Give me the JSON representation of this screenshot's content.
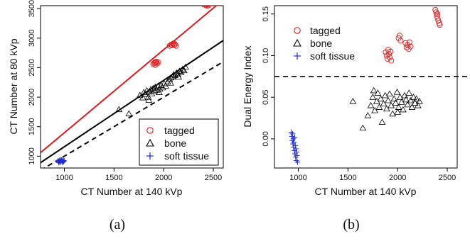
{
  "chart_data": [
    {
      "type": "scatter",
      "panel_label": "(a)",
      "xlabel": "CT Number at 140 kVp",
      "ylabel": "CT Number at 80 kVp",
      "xlim": [
        760,
        2600
      ],
      "ylim": [
        800,
        3550
      ],
      "xticks": [
        1000,
        1500,
        2000,
        2500
      ],
      "yticks": [
        1000,
        1500,
        2000,
        2500,
        3000,
        3500
      ],
      "legend_position": "bottom-right",
      "colors": {
        "tagged": "#e31a1c",
        "bone": "#000000",
        "soft_tissue": "#1f2bd6"
      },
      "series": [
        {
          "name": "tagged",
          "marker": "circle",
          "points": [
            [
              1895,
              2560
            ],
            [
              1905,
              2575
            ],
            [
              1912,
              2590
            ],
            [
              1920,
              2585
            ],
            [
              1928,
              2600
            ],
            [
              1935,
              2570
            ],
            [
              1945,
              2590
            ],
            [
              1915,
              2545
            ],
            [
              2060,
              2870
            ],
            [
              2075,
              2890
            ],
            [
              2085,
              2880
            ],
            [
              2095,
              2900
            ],
            [
              2105,
              2885
            ],
            [
              2115,
              2895
            ],
            [
              2125,
              2870
            ],
            [
              2100,
              2910
            ],
            [
              2405,
              3570
            ],
            [
              2415,
              3590
            ],
            [
              2420,
              3560
            ],
            [
              2430,
              3580
            ],
            [
              2440,
              3570
            ],
            [
              2450,
              3555
            ],
            [
              2425,
              3600
            ],
            [
              2435,
              3545
            ]
          ]
        },
        {
          "name": "bone",
          "marker": "triangle",
          "points": [
            [
              1550,
              1790
            ],
            [
              1650,
              1720
            ],
            [
              1760,
              2030
            ],
            [
              1790,
              1990
            ],
            [
              1800,
              2080
            ],
            [
              1815,
              2050
            ],
            [
              1830,
              2110
            ],
            [
              1845,
              2000
            ],
            [
              1855,
              2090
            ],
            [
              1870,
              2130
            ],
            [
              1880,
              2060
            ],
            [
              1895,
              2150
            ],
            [
              1905,
              2100
            ],
            [
              1915,
              2170
            ],
            [
              1930,
              2120
            ],
            [
              1945,
              2190
            ],
            [
              1960,
              2140
            ],
            [
              1975,
              2200
            ],
            [
              1990,
              2160
            ],
            [
              2005,
              2230
            ],
            [
              2020,
              2190
            ],
            [
              2040,
              2260
            ],
            [
              2060,
              2300
            ],
            [
              2075,
              2330
            ],
            [
              2090,
              2350
            ],
            [
              2100,
              2380
            ],
            [
              2115,
              2370
            ],
            [
              2130,
              2410
            ],
            [
              2145,
              2390
            ],
            [
              2160,
              2440
            ],
            [
              2175,
              2420
            ],
            [
              2190,
              2470
            ],
            [
              2205,
              2450
            ],
            [
              2220,
              2510
            ],
            [
              1850,
              1950
            ],
            [
              1955,
              2080
            ],
            [
              2070,
              2240
            ],
            [
              2150,
              2340
            ]
          ]
        },
        {
          "name": "soft tissue",
          "marker": "plus",
          "points": [
            [
              935,
              920
            ],
            [
              942,
              905
            ],
            [
              948,
              930
            ],
            [
              952,
              915
            ],
            [
              958,
              900
            ],
            [
              962,
              925
            ],
            [
              968,
              910
            ],
            [
              972,
              935
            ],
            [
              978,
              918
            ],
            [
              983,
              902
            ],
            [
              988,
              928
            ],
            [
              993,
              912
            ],
            [
              998,
              922
            ],
            [
              945,
              890
            ],
            [
              965,
              940
            ],
            [
              980,
              895
            ]
          ]
        }
      ],
      "lines": [
        {
          "name": "tagged fit",
          "style": "solid",
          "color": "#e31a1c",
          "x": [
            760,
            2600
          ],
          "y": [
            1060,
            3650
          ]
        },
        {
          "name": "bone fit",
          "style": "solid",
          "color": "#000000",
          "x": [
            760,
            2600
          ],
          "y": [
            890,
            2960
          ]
        },
        {
          "name": "identity",
          "style": "dashed",
          "color": "#000000",
          "x": [
            760,
            2600
          ],
          "y": [
            760,
            2600
          ]
        }
      ]
    },
    {
      "type": "scatter",
      "panel_label": "(b)",
      "xlabel": "CT Number at 140 kVp",
      "ylabel": "Dual Energy Index",
      "xlim": [
        760,
        2600
      ],
      "ylim": [
        -0.035,
        0.16
      ],
      "xticks": [
        1000,
        1500,
        2000,
        2500
      ],
      "yticks": [
        "0.00",
        "0.05",
        "0.10",
        "0.15"
      ],
      "ytick_values": [
        0,
        0.05,
        0.1,
        0.15
      ],
      "legend_position": "top-left",
      "threshold": 0.075,
      "colors": {
        "tagged": "#e31a1c",
        "bone": "#000000",
        "soft_tissue": "#1f2bd6"
      },
      "series": [
        {
          "name": "tagged",
          "marker": "circle",
          "points": [
            [
              1880,
              0.104
            ],
            [
              1890,
              0.1
            ],
            [
              1898,
              0.096
            ],
            [
              1905,
              0.107
            ],
            [
              1912,
              0.102
            ],
            [
              1920,
              0.098
            ],
            [
              1928,
              0.105
            ],
            [
              1935,
              0.094
            ],
            [
              2010,
              0.121
            ],
            [
              2020,
              0.124
            ],
            [
              2030,
              0.118
            ],
            [
              2080,
              0.115
            ],
            [
              2090,
              0.11
            ],
            [
              2100,
              0.113
            ],
            [
              2110,
              0.108
            ],
            [
              2120,
              0.116
            ],
            [
              2130,
              0.111
            ],
            [
              2380,
              0.155
            ],
            [
              2388,
              0.152
            ],
            [
              2395,
              0.148
            ],
            [
              2402,
              0.145
            ],
            [
              2410,
              0.142
            ],
            [
              2418,
              0.139
            ],
            [
              2425,
              0.137
            ],
            [
              2400,
              0.15
            ]
          ]
        },
        {
          "name": "bone",
          "marker": "triangle",
          "points": [
            [
              1550,
              0.045
            ],
            [
              1650,
              0.013
            ],
            [
              1700,
              0.028
            ],
            [
              1730,
              0.04
            ],
            [
              1750,
              0.05
            ],
            [
              1770,
              0.034
            ],
            [
              1790,
              0.045
            ],
            [
              1800,
              0.055
            ],
            [
              1815,
              0.038
            ],
            [
              1830,
              0.048
            ],
            [
              1845,
              0.02
            ],
            [
              1860,
              0.042
            ],
            [
              1875,
              0.052
            ],
            [
              1890,
              0.036
            ],
            [
              1905,
              0.046
            ],
            [
              1920,
              0.054
            ],
            [
              1935,
              0.04
            ],
            [
              1950,
              0.03
            ],
            [
              1965,
              0.048
            ],
            [
              1980,
              0.043
            ],
            [
              1995,
              0.056
            ],
            [
              2010,
              0.038
            ],
            [
              2025,
              0.05
            ],
            [
              2040,
              0.044
            ],
            [
              2055,
              0.035
            ],
            [
              2070,
              0.052
            ],
            [
              2085,
              0.047
            ],
            [
              2100,
              0.041
            ],
            [
              2115,
              0.055
            ],
            [
              2130,
              0.046
            ],
            [
              2145,
              0.038
            ],
            [
              2160,
              0.05
            ],
            [
              2175,
              0.043
            ],
            [
              2190,
              0.048
            ],
            [
              2205,
              0.04
            ],
            [
              2220,
              0.045
            ],
            [
              1760,
              0.058
            ],
            [
              2000,
              0.032
            ]
          ]
        },
        {
          "name": "soft tissue",
          "marker": "plus",
          "points": [
            [
              930,
              0.008
            ],
            [
              935,
              0.003
            ],
            [
              940,
              -0.002
            ],
            [
              942,
              0.006
            ],
            [
              946,
              -0.006
            ],
            [
              950,
              0.0
            ],
            [
              952,
              -0.01
            ],
            [
              956,
              -0.004
            ],
            [
              960,
              -0.014
            ],
            [
              963,
              0.002
            ],
            [
              966,
              -0.018
            ],
            [
              970,
              -0.008
            ],
            [
              973,
              -0.022
            ],
            [
              976,
              -0.012
            ],
            [
              980,
              -0.026
            ],
            [
              984,
              -0.016
            ],
            [
              988,
              -0.02
            ],
            [
              992,
              -0.028
            ]
          ]
        }
      ]
    }
  ]
}
